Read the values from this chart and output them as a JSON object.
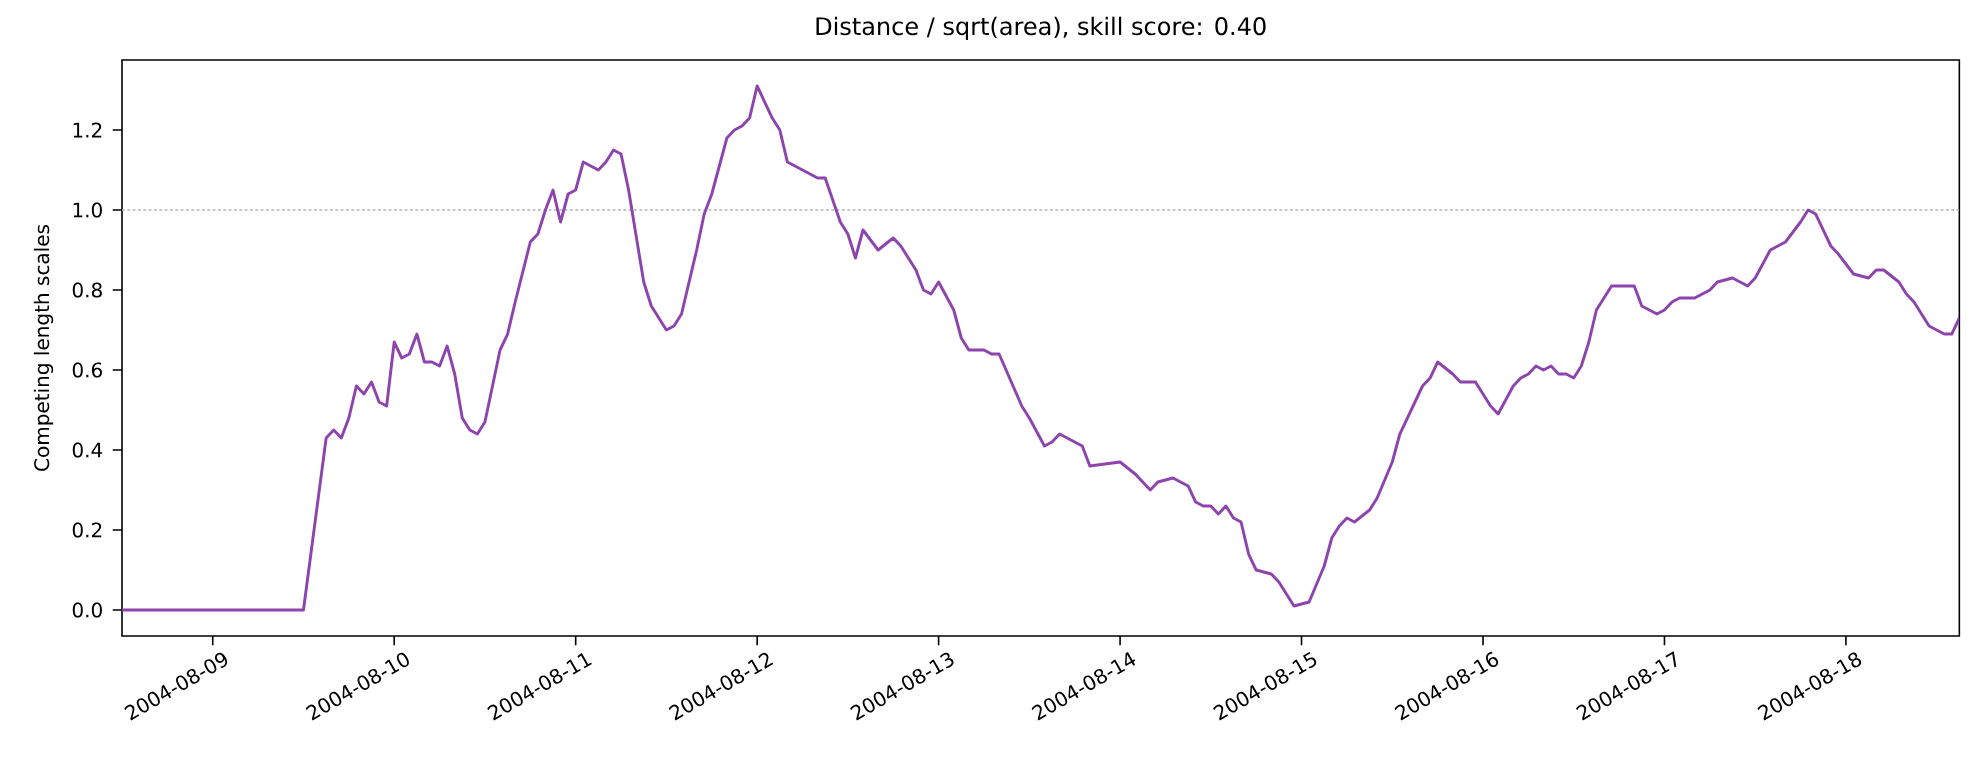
{
  "chart_data": {
    "type": "line",
    "title": "Distance / sqrt(area), skill score: 0.40",
    "ylabel": "Competing length scales",
    "xlim": [
      "2004-08-08T12:00",
      "2004-08-18T15:00"
    ],
    "ylim": [
      -0.065,
      1.375
    ],
    "xticks": [
      "2004-08-09",
      "2004-08-10",
      "2004-08-11",
      "2004-08-12",
      "2004-08-13",
      "2004-08-14",
      "2004-08-15",
      "2004-08-16",
      "2004-08-17",
      "2004-08-18"
    ],
    "yticks": [
      {
        "value": 0,
        "label": "0.0"
      },
      {
        "value": 0.2,
        "label": "0.2"
      },
      {
        "value": 0.4,
        "label": "0.4"
      },
      {
        "value": 0.6,
        "label": "0.6"
      },
      {
        "value": 0.8,
        "label": "0.8"
      },
      {
        "value": 1.0,
        "label": "1.0"
      },
      {
        "value": 1.2,
        "label": "1.2"
      }
    ],
    "ref_lines": [
      {
        "axis": "y",
        "value": 1.0,
        "color": "#b0b0b0",
        "line_style": "dotted"
      }
    ],
    "series": [
      {
        "color": "#8e44ad",
        "x": [
          "2004-08-08T12:00",
          "2004-08-09T12:00",
          "2004-08-09T15:00",
          "2004-08-09T16:00",
          "2004-08-09T17:00",
          "2004-08-09T18:00",
          "2004-08-09T19:00",
          "2004-08-09T20:00",
          "2004-08-09T21:00",
          "2004-08-09T22:00",
          "2004-08-09T23:00",
          "2004-08-10T00:00",
          "2004-08-10T01:00",
          "2004-08-10T02:00",
          "2004-08-10T03:00",
          "2004-08-10T04:00",
          "2004-08-10T05:00",
          "2004-08-10T06:00",
          "2004-08-10T07:00",
          "2004-08-10T08:00",
          "2004-08-10T09:00",
          "2004-08-10T10:00",
          "2004-08-10T11:00",
          "2004-08-10T12:00",
          "2004-08-10T14:00",
          "2004-08-10T15:00",
          "2004-08-10T16:00",
          "2004-08-10T18:00",
          "2004-08-10T19:00",
          "2004-08-10T20:00",
          "2004-08-10T21:00",
          "2004-08-10T22:00",
          "2004-08-10T23:00",
          "2004-08-11T00:00",
          "2004-08-11T01:00",
          "2004-08-11T02:00",
          "2004-08-11T03:00",
          "2004-08-11T04:00",
          "2004-08-11T05:00",
          "2004-08-11T06:00",
          "2004-08-11T07:00",
          "2004-08-11T09:00",
          "2004-08-11T10:00",
          "2004-08-11T12:00",
          "2004-08-11T13:00",
          "2004-08-11T14:00",
          "2004-08-11T16:00",
          "2004-08-11T17:00",
          "2004-08-11T18:00",
          "2004-08-11T20:00",
          "2004-08-11T21:00",
          "2004-08-11T22:00",
          "2004-08-11T23:00",
          "2004-08-12T00:00",
          "2004-08-12T01:00",
          "2004-08-12T02:00",
          "2004-08-12T03:00",
          "2004-08-12T04:00",
          "2004-08-12T06:00",
          "2004-08-12T08:00",
          "2004-08-12T09:00",
          "2004-08-12T11:00",
          "2004-08-12T12:00",
          "2004-08-12T13:00",
          "2004-08-12T14:00",
          "2004-08-12T16:00",
          "2004-08-12T18:00",
          "2004-08-12T19:00",
          "2004-08-12T21:00",
          "2004-08-12T22:00",
          "2004-08-12T23:00",
          "2004-08-13T00:00",
          "2004-08-13T02:00",
          "2004-08-13T03:00",
          "2004-08-13T04:00",
          "2004-08-13T06:00",
          "2004-08-13T07:00",
          "2004-08-13T08:00",
          "2004-08-13T11:00",
          "2004-08-13T12:00",
          "2004-08-13T14:00",
          "2004-08-13T15:00",
          "2004-08-13T16:00",
          "2004-08-13T17:00",
          "2004-08-13T19:00",
          "2004-08-13T20:00",
          "2004-08-14T00:00",
          "2004-08-14T02:00",
          "2004-08-14T04:00",
          "2004-08-14T05:00",
          "2004-08-14T07:00",
          "2004-08-14T08:00",
          "2004-08-14T09:00",
          "2004-08-14T10:00",
          "2004-08-14T11:00",
          "2004-08-14T12:00",
          "2004-08-14T13:00",
          "2004-08-14T14:00",
          "2004-08-14T15:00",
          "2004-08-14T16:00",
          "2004-08-14T17:00",
          "2004-08-14T18:00",
          "2004-08-14T20:00",
          "2004-08-14T21:00",
          "2004-08-14T22:00",
          "2004-08-14T23:00",
          "2004-08-15T01:00",
          "2004-08-15T03:00",
          "2004-08-15T04:00",
          "2004-08-15T05:00",
          "2004-08-15T06:00",
          "2004-08-15T07:00",
          "2004-08-15T09:00",
          "2004-08-15T10:00",
          "2004-08-15T12:00",
          "2004-08-15T13:00",
          "2004-08-15T16:00",
          "2004-08-15T17:00",
          "2004-08-15T18:00",
          "2004-08-15T20:00",
          "2004-08-15T21:00",
          "2004-08-15T23:00",
          "2004-08-16T01:00",
          "2004-08-16T02:00",
          "2004-08-16T04:00",
          "2004-08-16T05:00",
          "2004-08-16T06:00",
          "2004-08-16T07:00",
          "2004-08-16T08:00",
          "2004-08-16T09:00",
          "2004-08-16T10:00",
          "2004-08-16T11:00",
          "2004-08-16T12:00",
          "2004-08-16T13:00",
          "2004-08-16T14:00",
          "2004-08-16T15:00",
          "2004-08-16T17:00",
          "2004-08-16T20:00",
          "2004-08-16T21:00",
          "2004-08-16T23:00",
          "2004-08-17T00:00",
          "2004-08-17T01:00",
          "2004-08-17T02:00",
          "2004-08-17T04:00",
          "2004-08-17T06:00",
          "2004-08-17T07:00",
          "2004-08-17T09:00",
          "2004-08-17T11:00",
          "2004-08-17T12:00",
          "2004-08-17T14:00",
          "2004-08-17T15:00",
          "2004-08-17T16:00",
          "2004-08-17T18:00",
          "2004-08-17T19:00",
          "2004-08-17T20:00",
          "2004-08-17T22:00",
          "2004-08-17T23:00",
          "2004-08-18T01:00",
          "2004-08-18T03:00",
          "2004-08-18T04:00",
          "2004-08-18T05:00",
          "2004-08-18T07:00",
          "2004-08-18T08:00",
          "2004-08-18T09:00",
          "2004-08-18T11:00",
          "2004-08-18T13:00",
          "2004-08-18T14:00",
          "2004-08-18T15:00"
        ],
        "values": [
          0,
          0,
          0.43,
          0.45,
          0.43,
          0.48,
          0.56,
          0.54,
          0.57,
          0.52,
          0.51,
          0.67,
          0.63,
          0.64,
          0.69,
          0.62,
          0.62,
          0.61,
          0.66,
          0.59,
          0.48,
          0.45,
          0.44,
          0.47,
          0.65,
          0.69,
          0.77,
          0.92,
          0.94,
          1.0,
          1.05,
          0.97,
          1.04,
          1.05,
          1.12,
          1.11,
          1.1,
          1.12,
          1.15,
          1.14,
          1.05,
          0.82,
          0.76,
          0.7,
          0.71,
          0.74,
          0.9,
          0.99,
          1.04,
          1.18,
          1.2,
          1.21,
          1.23,
          1.31,
          1.27,
          1.23,
          1.2,
          1.12,
          1.1,
          1.08,
          1.08,
          0.97,
          0.94,
          0.88,
          0.95,
          0.9,
          0.93,
          0.91,
          0.85,
          0.8,
          0.79,
          0.82,
          0.75,
          0.68,
          0.65,
          0.65,
          0.64,
          0.64,
          0.51,
          0.48,
          0.41,
          0.42,
          0.44,
          0.43,
          0.41,
          0.36,
          0.37,
          0.34,
          0.3,
          0.32,
          0.33,
          0.32,
          0.31,
          0.27,
          0.26,
          0.26,
          0.24,
          0.26,
          0.23,
          0.22,
          0.14,
          0.1,
          0.09,
          0.07,
          0.04,
          0.01,
          0.02,
          0.11,
          0.18,
          0.21,
          0.23,
          0.22,
          0.25,
          0.28,
          0.37,
          0.44,
          0.56,
          0.58,
          0.62,
          0.59,
          0.57,
          0.57,
          0.51,
          0.49,
          0.56,
          0.58,
          0.59,
          0.61,
          0.6,
          0.61,
          0.59,
          0.59,
          0.58,
          0.61,
          0.67,
          0.75,
          0.81,
          0.81,
          0.76,
          0.74,
          0.75,
          0.77,
          0.78,
          0.78,
          0.8,
          0.82,
          0.83,
          0.81,
          0.83,
          0.9,
          0.91,
          0.92,
          0.97,
          1.0,
          0.99,
          0.91,
          0.89,
          0.84,
          0.83,
          0.85,
          0.85,
          0.82,
          0.79,
          0.77,
          0.71,
          0.69,
          0.69,
          0.73
        ]
      }
    ]
  }
}
